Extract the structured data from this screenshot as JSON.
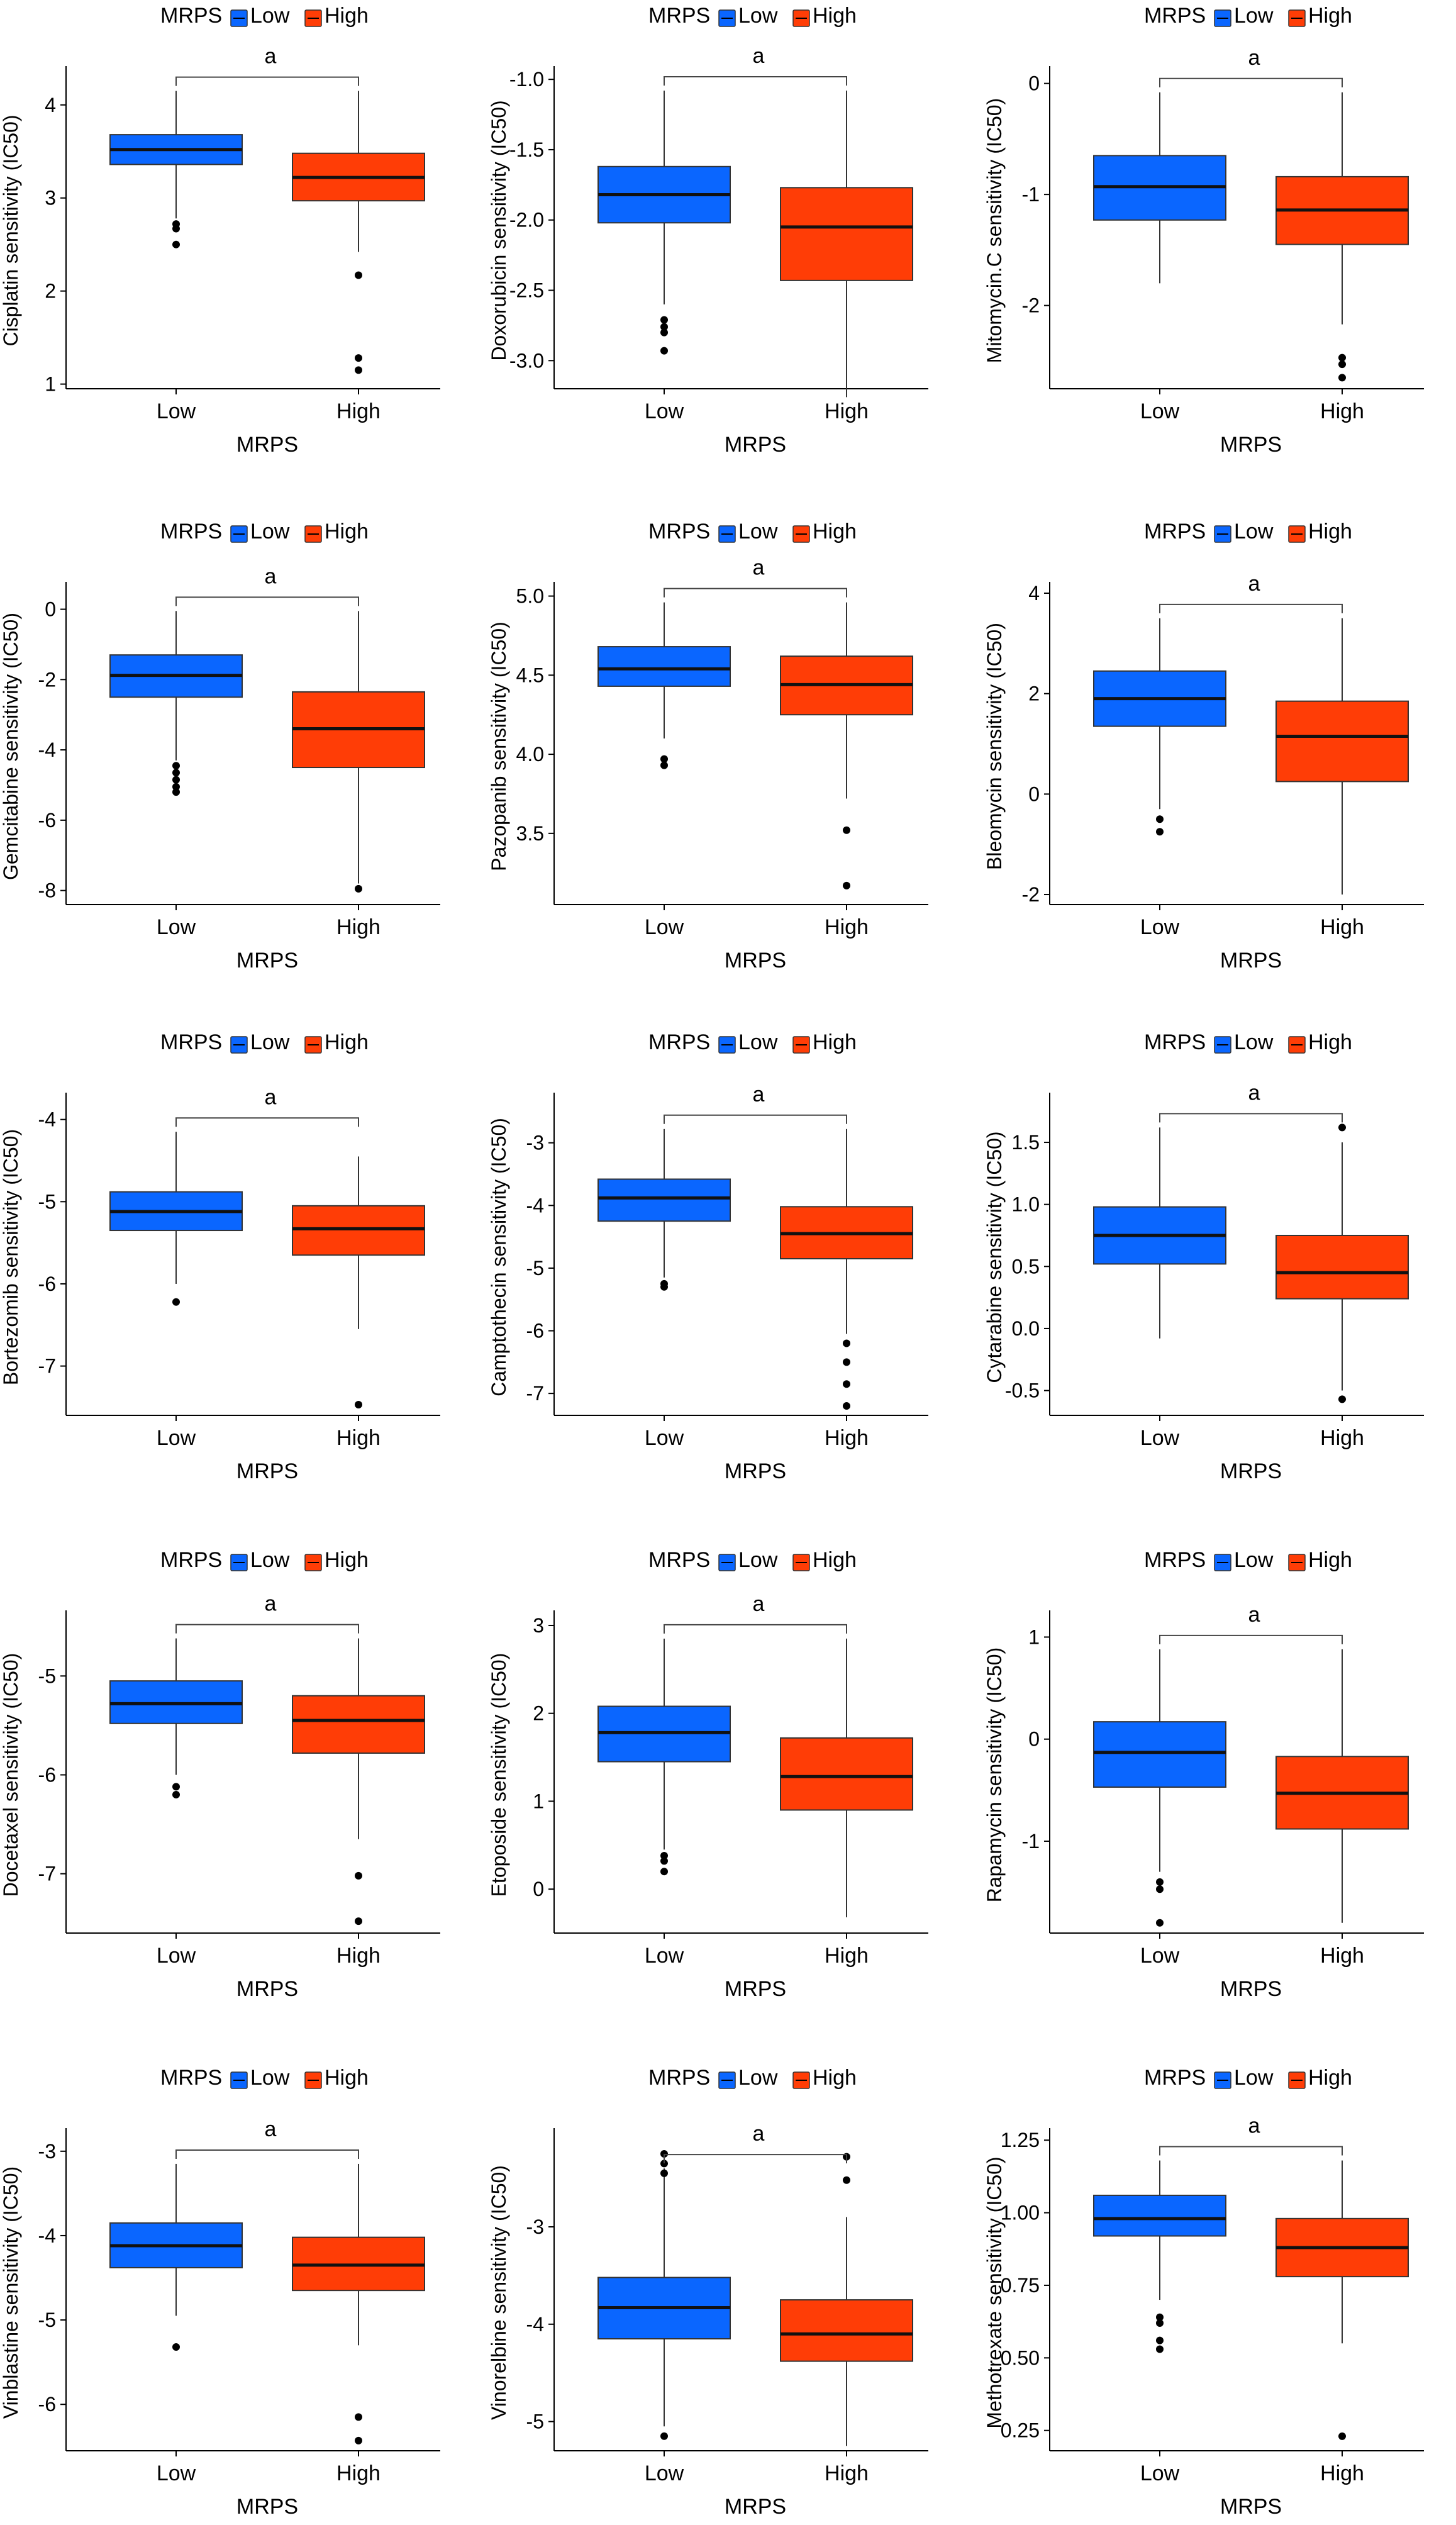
{
  "colors": {
    "low": "#0a66ff",
    "high": "#ff3d06",
    "whisker": "#333333",
    "axis": "#000000"
  },
  "common": {
    "legend_title": "MRPS",
    "legend_low": "Low",
    "legend_high": "High",
    "x_title": "MRPS",
    "significance_label": "a"
  },
  "chart_data": [
    {
      "type": "box",
      "title": "",
      "xlabel": "MRPS",
      "ylabel": "Cisplatin sensitivity (IC50)",
      "categories": [
        "Low",
        "High"
      ],
      "ylim": [
        0.95,
        4.35
      ],
      "yticks": [
        1,
        2,
        3,
        4
      ],
      "ytick_labels": [
        "1",
        "2",
        "3",
        "4"
      ],
      "legend": {
        "title": "MRPS",
        "entries": [
          "Low",
          "High"
        ],
        "position": "top"
      },
      "significance": "a",
      "series": [
        {
          "name": "Low",
          "whisker_low": 2.78,
          "q1": 3.36,
          "median": 3.52,
          "q3": 3.68,
          "whisker_high": 4.15,
          "outliers": [
            2.72,
            2.67,
            2.5
          ]
        },
        {
          "name": "High",
          "whisker_low": 2.42,
          "q1": 2.97,
          "median": 3.22,
          "q3": 3.48,
          "whisker_high": 4.15,
          "outliers": [
            2.17,
            1.28,
            1.15
          ]
        }
      ]
    },
    {
      "type": "box",
      "title": "",
      "xlabel": "MRPS",
      "ylabel": "Doxorubicin sensitivity (IC50)",
      "categories": [
        "Low",
        "High"
      ],
      "ylim": [
        -3.2,
        -0.95
      ],
      "yticks": [
        -3.0,
        -2.5,
        -2.0,
        -1.5,
        -1.0
      ],
      "ytick_labels": [
        "-3.0",
        "-2.5",
        "-2.0",
        "-1.5",
        "-1.0"
      ],
      "legend": {
        "title": "MRPS",
        "entries": [
          "Low",
          "High"
        ],
        "position": "top"
      },
      "significance": "a",
      "series": [
        {
          "name": "Low",
          "whisker_low": -2.6,
          "q1": -2.02,
          "median": -1.82,
          "q3": -1.62,
          "whisker_high": -1.08,
          "outliers": [
            -2.71,
            -2.76,
            -2.8,
            -2.93
          ]
        },
        {
          "name": "High",
          "whisker_low": -3.26,
          "q1": -2.43,
          "median": -2.05,
          "q3": -1.77,
          "whisker_high": -1.08,
          "outliers": []
        }
      ]
    },
    {
      "type": "box",
      "title": "",
      "xlabel": "MRPS",
      "ylabel": "Mitomycin.C sensitivity (IC50)",
      "categories": [
        "Low",
        "High"
      ],
      "ylim": [
        -2.75,
        0.1
      ],
      "yticks": [
        -2,
        -1,
        0
      ],
      "ytick_labels": [
        "-2",
        "-1",
        "0"
      ],
      "legend": {
        "title": "MRPS",
        "entries": [
          "Low",
          "High"
        ],
        "position": "top"
      },
      "significance": "a",
      "series": [
        {
          "name": "Low",
          "whisker_low": -1.8,
          "q1": -1.23,
          "median": -0.93,
          "q3": -0.65,
          "whisker_high": -0.08,
          "outliers": []
        },
        {
          "name": "High",
          "whisker_low": -2.17,
          "q1": -1.45,
          "median": -1.14,
          "q3": -0.84,
          "whisker_high": -0.08,
          "outliers": [
            -2.47,
            -2.53,
            -2.65
          ]
        }
      ]
    },
    {
      "type": "box",
      "title": "",
      "xlabel": "MRPS",
      "ylabel": "Gemcitabine sensitivity (IC50)",
      "categories": [
        "Low",
        "High"
      ],
      "ylim": [
        -8.4,
        0.6
      ],
      "yticks": [
        -8,
        -6,
        -4,
        -2,
        0
      ],
      "ytick_labels": [
        "-8",
        "-6",
        "-4",
        "-2",
        "0"
      ],
      "legend": {
        "title": "MRPS",
        "entries": [
          "Low",
          "High"
        ],
        "position": "top"
      },
      "significance": "a",
      "series": [
        {
          "name": "Low",
          "whisker_low": -4.3,
          "q1": -2.5,
          "median": -1.88,
          "q3": -1.3,
          "whisker_high": -0.05,
          "outliers": [
            -4.45,
            -4.65,
            -4.85,
            -5.05,
            -5.2
          ]
        },
        {
          "name": "High",
          "whisker_low": -7.8,
          "q1": -4.5,
          "median": -3.4,
          "q3": -2.35,
          "whisker_high": -0.05,
          "outliers": [
            -7.95
          ]
        }
      ]
    },
    {
      "type": "box",
      "title": "",
      "xlabel": "MRPS",
      "ylabel": "Pazopanib sensitivity (IC50)",
      "categories": [
        "Low",
        "High"
      ],
      "ylim": [
        3.05,
        5.05
      ],
      "yticks": [
        3.5,
        4.0,
        4.5,
        5.0
      ],
      "ytick_labels": [
        "3.5",
        "4.0",
        "4.5",
        "5.0"
      ],
      "legend": {
        "title": "MRPS",
        "entries": [
          "Low",
          "High"
        ],
        "position": "top"
      },
      "significance": "a",
      "series": [
        {
          "name": "Low",
          "whisker_low": 4.1,
          "q1": 4.43,
          "median": 4.54,
          "q3": 4.68,
          "whisker_high": 4.96,
          "outliers": [
            3.97,
            3.93
          ]
        },
        {
          "name": "High",
          "whisker_low": 3.72,
          "q1": 4.25,
          "median": 4.44,
          "q3": 4.62,
          "whisker_high": 4.96,
          "outliers": [
            3.52,
            3.17
          ]
        }
      ]
    },
    {
      "type": "box",
      "title": "",
      "xlabel": "MRPS",
      "ylabel": "Bleomycin sensitivity (IC50)",
      "categories": [
        "Low",
        "High"
      ],
      "ylim": [
        -2.2,
        4.1
      ],
      "yticks": [
        -2,
        0,
        2,
        4
      ],
      "ytick_labels": [
        "-2",
        "0",
        "2",
        "4"
      ],
      "legend": {
        "title": "MRPS",
        "entries": [
          "Low",
          "High"
        ],
        "position": "top"
      },
      "significance": "a",
      "series": [
        {
          "name": "Low",
          "whisker_low": -0.3,
          "q1": 1.35,
          "median": 1.9,
          "q3": 2.45,
          "whisker_high": 3.5,
          "outliers": [
            -0.5,
            -0.75
          ]
        },
        {
          "name": "High",
          "whisker_low": -2.0,
          "q1": 0.25,
          "median": 1.15,
          "q3": 1.85,
          "whisker_high": 3.5,
          "outliers": []
        }
      ]
    },
    {
      "type": "box",
      "title": "",
      "xlabel": "MRPS",
      "ylabel": "Bortezomib sensitivity (IC50)",
      "categories": [
        "Low",
        "High"
      ],
      "ylim": [
        -7.6,
        -3.75
      ],
      "yticks": [
        -7,
        -6,
        -5,
        -4
      ],
      "ytick_labels": [
        "-7",
        "-6",
        "-5",
        "-4"
      ],
      "legend": {
        "title": "MRPS",
        "entries": [
          "Low",
          "High"
        ],
        "position": "top"
      },
      "significance": "a",
      "series": [
        {
          "name": "Low",
          "whisker_low": -6.0,
          "q1": -5.35,
          "median": -5.12,
          "q3": -4.88,
          "whisker_high": -4.15,
          "outliers": [
            -6.22
          ]
        },
        {
          "name": "High",
          "whisker_low": -6.55,
          "q1": -5.65,
          "median": -5.33,
          "q3": -5.05,
          "whisker_high": -4.45,
          "outliers": [
            -7.47
          ]
        }
      ]
    },
    {
      "type": "box",
      "title": "",
      "xlabel": "MRPS",
      "ylabel": "Camptothecin sensitivity (IC50)",
      "categories": [
        "Low",
        "High"
      ],
      "ylim": [
        -7.35,
        -2.3
      ],
      "yticks": [
        -7,
        -6,
        -5,
        -4,
        -3
      ],
      "ytick_labels": [
        "-7",
        "-6",
        "-5",
        "-4",
        "-3"
      ],
      "legend": {
        "title": "MRPS",
        "entries": [
          "Low",
          "High"
        ],
        "position": "top"
      },
      "significance": "a",
      "series": [
        {
          "name": "Low",
          "whisker_low": -5.15,
          "q1": -4.25,
          "median": -3.88,
          "q3": -3.58,
          "whisker_high": -2.78,
          "outliers": [
            -5.25,
            -5.3
          ]
        },
        {
          "name": "High",
          "whisker_low": -6.05,
          "q1": -4.85,
          "median": -4.45,
          "q3": -4.02,
          "whisker_high": -2.78,
          "outliers": [
            -6.2,
            -6.5,
            -6.85,
            -7.2
          ]
        }
      ]
    },
    {
      "type": "box",
      "title": "",
      "xlabel": "MRPS",
      "ylabel": "Cytarabine sensitivity (IC50)",
      "categories": [
        "Low",
        "High"
      ],
      "ylim": [
        -0.7,
        1.85
      ],
      "yticks": [
        -0.5,
        0.0,
        0.5,
        1.0,
        1.5
      ],
      "ytick_labels": [
        "-0.5",
        "0.0",
        "0.5",
        "1.0",
        "1.5"
      ],
      "legend": {
        "title": "MRPS",
        "entries": [
          "Low",
          "High"
        ],
        "position": "top"
      },
      "significance": "a",
      "series": [
        {
          "name": "Low",
          "whisker_low": -0.08,
          "q1": 0.52,
          "median": 0.75,
          "q3": 0.98,
          "whisker_high": 1.62,
          "outliers": []
        },
        {
          "name": "High",
          "whisker_low": -0.5,
          "q1": 0.24,
          "median": 0.45,
          "q3": 0.75,
          "whisker_high": 1.5,
          "outliers": [
            1.62,
            -0.57
          ]
        }
      ]
    },
    {
      "type": "box",
      "title": "",
      "xlabel": "MRPS",
      "ylabel": "Docetaxel sensitivity (IC50)",
      "categories": [
        "Low",
        "High"
      ],
      "ylim": [
        -7.6,
        -4.4
      ],
      "yticks": [
        -7,
        -6,
        -5
      ],
      "ytick_labels": [
        "-7",
        "-6",
        "-5"
      ],
      "legend": {
        "title": "MRPS",
        "entries": [
          "Low",
          "High"
        ],
        "position": "top"
      },
      "significance": "a",
      "series": [
        {
          "name": "Low",
          "whisker_low": -6.0,
          "q1": -5.48,
          "median": -5.28,
          "q3": -5.05,
          "whisker_high": -4.62,
          "outliers": [
            -6.12,
            -6.2
          ]
        },
        {
          "name": "High",
          "whisker_low": -6.65,
          "q1": -5.78,
          "median": -5.45,
          "q3": -5.2,
          "whisker_high": -4.62,
          "outliers": [
            -7.02,
            -7.48
          ]
        }
      ]
    },
    {
      "type": "box",
      "title": "",
      "xlabel": "MRPS",
      "ylabel": "Etoposide sensitivity (IC50)",
      "categories": [
        "Low",
        "High"
      ],
      "ylim": [
        -0.5,
        3.1
      ],
      "yticks": [
        0,
        1,
        2,
        3
      ],
      "ytick_labels": [
        "0",
        "1",
        "2",
        "3"
      ],
      "legend": {
        "title": "MRPS",
        "entries": [
          "Low",
          "High"
        ],
        "position": "top"
      },
      "significance": "a",
      "series": [
        {
          "name": "Low",
          "whisker_low": 0.45,
          "q1": 1.45,
          "median": 1.78,
          "q3": 2.08,
          "whisker_high": 2.85,
          "outliers": [
            0.38,
            0.32,
            0.2
          ]
        },
        {
          "name": "High",
          "whisker_low": -0.32,
          "q1": 0.9,
          "median": 1.28,
          "q3": 1.72,
          "whisker_high": 2.85,
          "outliers": []
        }
      ]
    },
    {
      "type": "box",
      "title": "",
      "xlabel": "MRPS",
      "ylabel": "Rapamycin sensitivity (IC50)",
      "categories": [
        "Low",
        "High"
      ],
      "ylim": [
        -1.9,
        1.2
      ],
      "yticks": [
        -1,
        0,
        1
      ],
      "ytick_labels": [
        "-1",
        "0",
        "1"
      ],
      "legend": {
        "title": "MRPS",
        "entries": [
          "Low",
          "High"
        ],
        "position": "top"
      },
      "significance": "a",
      "series": [
        {
          "name": "Low",
          "whisker_low": -1.3,
          "q1": -0.47,
          "median": -0.13,
          "q3": 0.17,
          "whisker_high": 0.88,
          "outliers": [
            -1.4,
            -1.47,
            -1.8
          ]
        },
        {
          "name": "High",
          "whisker_low": -1.8,
          "q1": -0.88,
          "median": -0.53,
          "q3": -0.17,
          "whisker_high": 0.88,
          "outliers": []
        }
      ]
    },
    {
      "type": "box",
      "title": "",
      "xlabel": "MRPS",
      "ylabel": "Vinblastine sensitivity (IC50)",
      "categories": [
        "Low",
        "High"
      ],
      "ylim": [
        -6.55,
        -2.8
      ],
      "yticks": [
        -6,
        -5,
        -4,
        -3
      ],
      "ytick_labels": [
        "-6",
        "-5",
        "-4",
        "-3"
      ],
      "legend": {
        "title": "MRPS",
        "entries": [
          "Low",
          "High"
        ],
        "position": "top"
      },
      "significance": "a",
      "series": [
        {
          "name": "Low",
          "whisker_low": -4.95,
          "q1": -4.38,
          "median": -4.12,
          "q3": -3.85,
          "whisker_high": -3.15,
          "outliers": [
            -5.32
          ]
        },
        {
          "name": "High",
          "whisker_low": -5.3,
          "q1": -4.65,
          "median": -4.35,
          "q3": -4.02,
          "whisker_high": -3.15,
          "outliers": [
            -6.15,
            -6.43
          ]
        }
      ]
    },
    {
      "type": "box",
      "title": "",
      "xlabel": "MRPS",
      "ylabel": "Vinorelbine sensitivity (IC50)",
      "categories": [
        "Low",
        "High"
      ],
      "ylim": [
        -5.3,
        -2.05
      ],
      "yticks": [
        -5,
        -4,
        -3
      ],
      "ytick_labels": [
        "-5",
        "-4",
        "-3"
      ],
      "legend": {
        "title": "MRPS",
        "entries": [
          "Low",
          "High"
        ],
        "position": "top"
      },
      "significance": "a",
      "series": [
        {
          "name": "Low",
          "whisker_low": -5.05,
          "q1": -4.15,
          "median": -3.83,
          "q3": -3.52,
          "whisker_high": -2.4,
          "outliers": [
            -2.25,
            -2.35,
            -2.45,
            -5.15
          ]
        },
        {
          "name": "High",
          "whisker_low": -5.25,
          "q1": -4.38,
          "median": -4.1,
          "q3": -3.75,
          "whisker_high": -2.9,
          "outliers": [
            -2.28,
            -2.52
          ]
        }
      ]
    },
    {
      "type": "box",
      "title": "",
      "xlabel": "MRPS",
      "ylabel": "Methotrexate sensitivity (IC50)",
      "categories": [
        "Low",
        "High"
      ],
      "ylim": [
        0.18,
        1.27
      ],
      "yticks": [
        0.25,
        0.5,
        0.75,
        1.0,
        1.25
      ],
      "ytick_labels": [
        "0.25",
        "0.50",
        "0.75",
        "1.00",
        "1.25"
      ],
      "legend": {
        "title": "MRPS",
        "entries": [
          "Low",
          "High"
        ],
        "position": "top"
      },
      "significance": "a",
      "series": [
        {
          "name": "Low",
          "whisker_low": 0.7,
          "q1": 0.92,
          "median": 0.98,
          "q3": 1.06,
          "whisker_high": 1.18,
          "outliers": [
            0.64,
            0.62,
            0.56,
            0.53
          ]
        },
        {
          "name": "High",
          "whisker_low": 0.55,
          "q1": 0.78,
          "median": 0.88,
          "q3": 0.98,
          "whisker_high": 1.18,
          "outliers": [
            0.23
          ]
        }
      ]
    }
  ]
}
